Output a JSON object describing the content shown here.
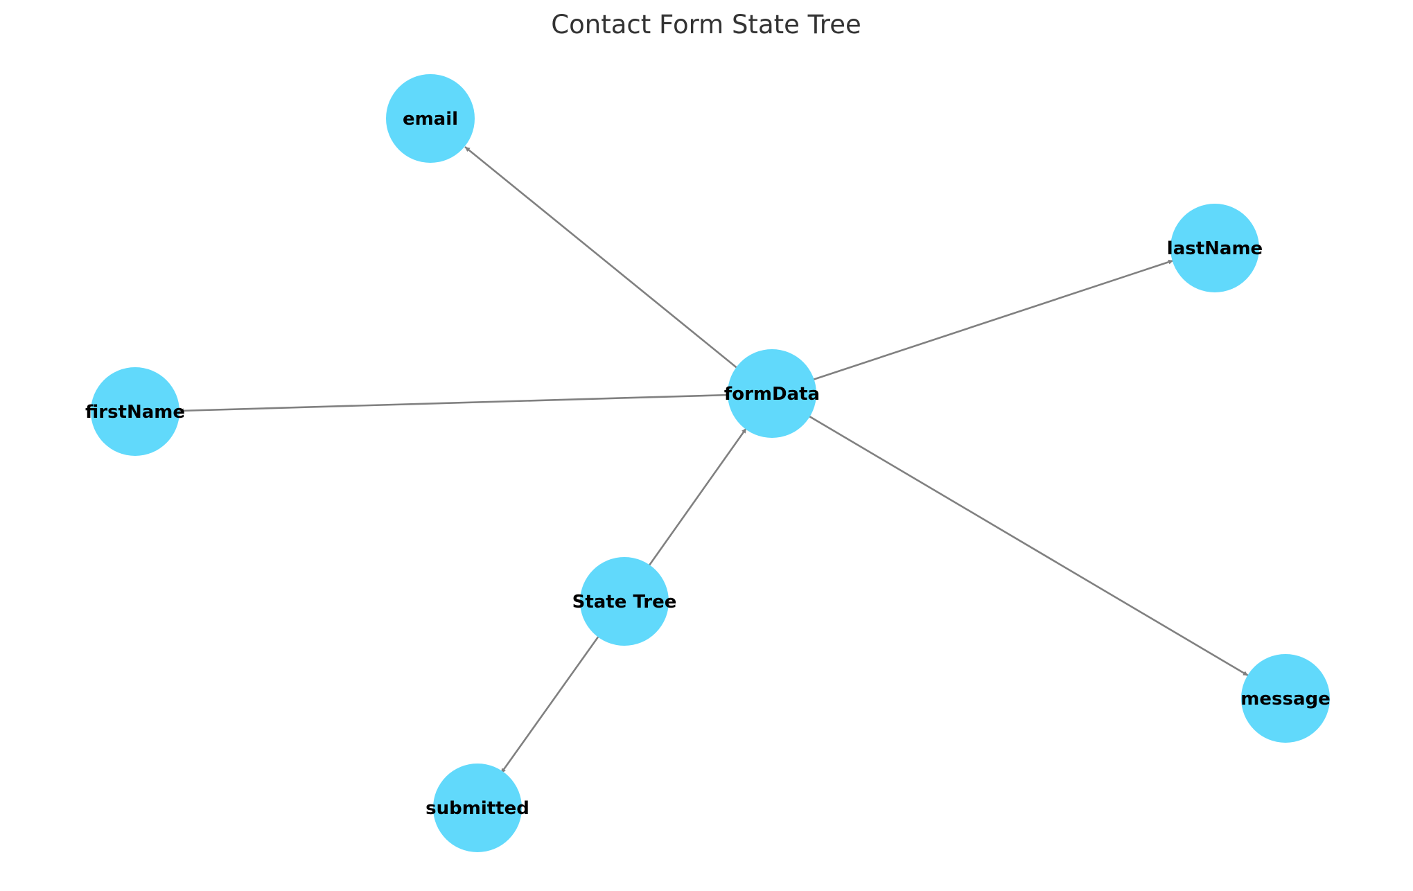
{
  "title": "Contact Form State Tree",
  "colors": {
    "node_fill": "#61d9fb",
    "edge_stroke": "#808080",
    "title_text": "#333333",
    "label_text": "#000000"
  },
  "nodes": {
    "root": "State Tree",
    "form_data": "formData",
    "submitted": "submitted",
    "first_name": "firstName",
    "last_name": "lastName",
    "email": "email",
    "message": "message"
  },
  "edges": [
    {
      "from": "root",
      "to": "form_data"
    },
    {
      "from": "root",
      "to": "submitted"
    },
    {
      "from": "form_data",
      "to": "first_name"
    },
    {
      "from": "form_data",
      "to": "last_name"
    },
    {
      "from": "form_data",
      "to": "email"
    },
    {
      "from": "form_data",
      "to": "message"
    }
  ]
}
